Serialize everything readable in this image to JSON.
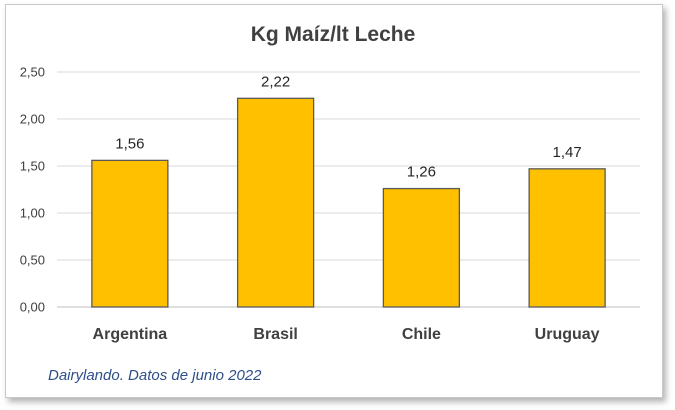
{
  "chart_data": {
    "type": "bar",
    "title": "Kg Maíz/lt Leche",
    "categories": [
      "Argentina",
      "Brasil",
      "Chile",
      "Uruguay"
    ],
    "values": [
      1.56,
      2.22,
      1.26,
      1.47
    ],
    "value_labels": [
      "1,56",
      "2,22",
      "1,26",
      "1,47"
    ],
    "ylim": [
      0,
      2.5
    ],
    "yticks": [
      0,
      0.5,
      1.0,
      1.5,
      2.0,
      2.5
    ],
    "ytick_labels": [
      "0,00",
      "0,50",
      "1,00",
      "1,50",
      "2,00",
      "2,50"
    ],
    "grid": true,
    "legend": "none",
    "colors": {
      "bar_fill": "#ffc000",
      "bar_stroke": "#595959"
    }
  },
  "source_note": "Dairylando. Datos de junio 2022"
}
